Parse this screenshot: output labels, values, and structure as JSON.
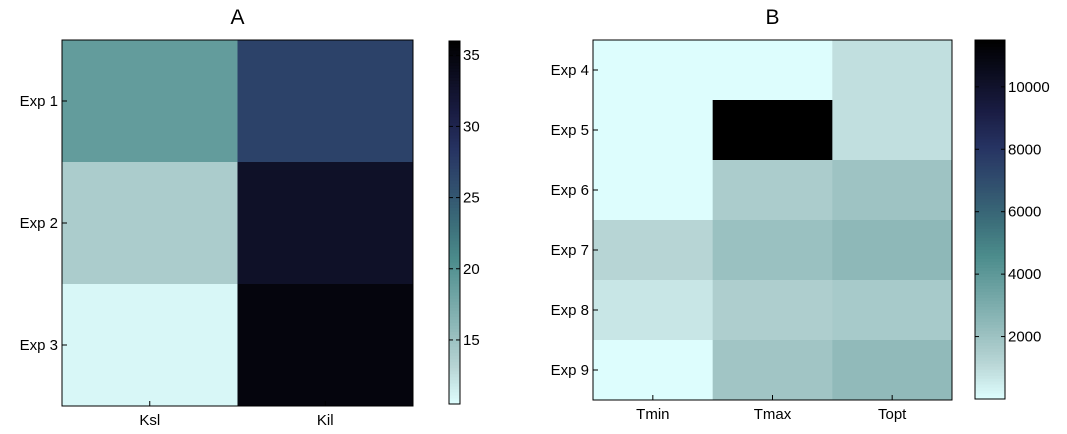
{
  "chart_data": [
    {
      "type": "heatmap",
      "title": "A",
      "x_categories": [
        "Ksl",
        "Kil"
      ],
      "y_categories": [
        "Exp 1",
        "Exp 2",
        "Exp 3"
      ],
      "values": [
        [
          19,
          27
        ],
        [
          14,
          33
        ],
        [
          11,
          35
        ]
      ],
      "colorbar": {
        "range": [
          10.5,
          36
        ],
        "ticks": [
          15,
          20,
          25,
          30,
          35
        ]
      },
      "colormap": "bone-reversed"
    },
    {
      "type": "heatmap",
      "title": "B",
      "x_categories": [
        "Tmin",
        "Tmax",
        "Topt"
      ],
      "y_categories": [
        "Exp 4",
        "Exp 5",
        "Exp 6",
        "Exp 7",
        "Exp 8",
        "Exp 9"
      ],
      "values": [
        [
          60,
          60,
          900
        ],
        [
          60,
          11500,
          900
        ],
        [
          60,
          1600,
          2000
        ],
        [
          1200,
          2100,
          2500
        ],
        [
          700,
          1500,
          1700
        ],
        [
          60,
          1900,
          2400
        ]
      ],
      "colorbar": {
        "range": [
          0,
          11500
        ],
        "ticks": [
          2000,
          4000,
          6000,
          8000,
          10000
        ]
      },
      "colormap": "bone-reversed"
    }
  ],
  "colormap_stops": [
    "#dfffff",
    "#b9d6d6",
    "#94bcbc",
    "#6fa4a4",
    "#4c8c8c",
    "#3b6d79",
    "#314f6e",
    "#273463",
    "#1a1d44",
    "#0d0e22",
    "#000000"
  ]
}
